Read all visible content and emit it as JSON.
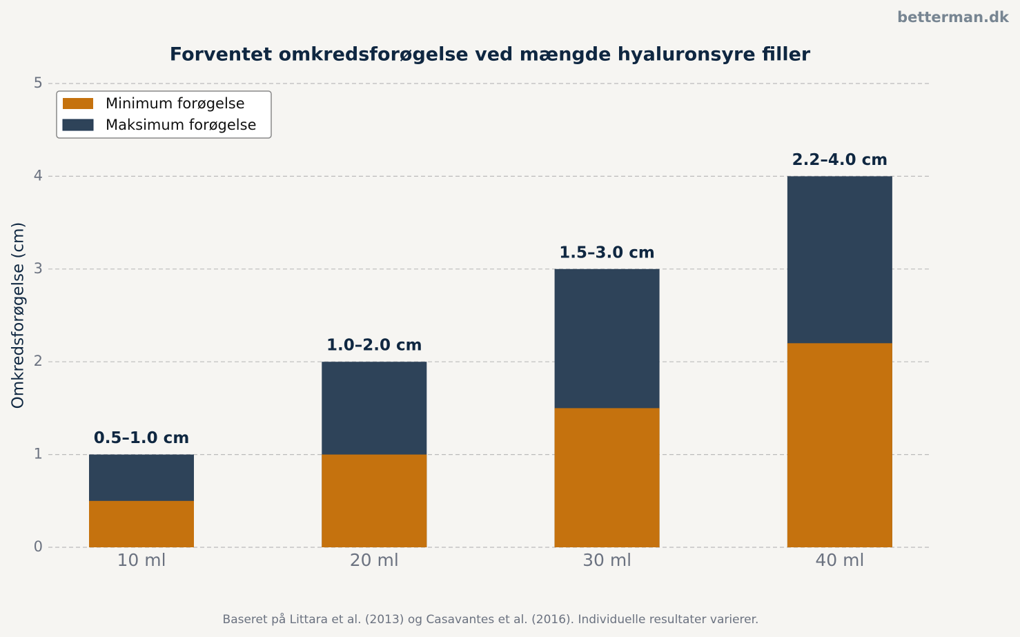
{
  "chart_data": {
    "type": "bar",
    "title": "Forventet omkredsforøgelse ved mængde hyaluronsyre filler",
    "watermark": "betterman.dk",
    "ylabel": "Omkredsforøgelse (cm)",
    "footnote": "Baseret på Littara et al. (2013) og Casavantes et al. (2016). Individuelle resultater varierer.",
    "categories": [
      "10 ml",
      "20 ml",
      "30 ml",
      "40 ml"
    ],
    "series": [
      {
        "name": "Minimum forøgelse",
        "color": "#c5720e",
        "values": [
          0.5,
          1.0,
          1.5,
          2.2
        ]
      },
      {
        "name": "Maksimum forøgelse",
        "color": "#2e4359",
        "values": [
          1.0,
          2.0,
          3.0,
          4.0
        ]
      }
    ],
    "bar_labels": [
      "0.5–1.0 cm",
      "1.0–2.0 cm",
      "1.5–3.0 cm",
      "2.2–4.0 cm"
    ],
    "ylim": [
      0,
      5
    ],
    "yticks": [
      0,
      1,
      2,
      3,
      4,
      5
    ],
    "grid": true,
    "legend": "upper left"
  }
}
